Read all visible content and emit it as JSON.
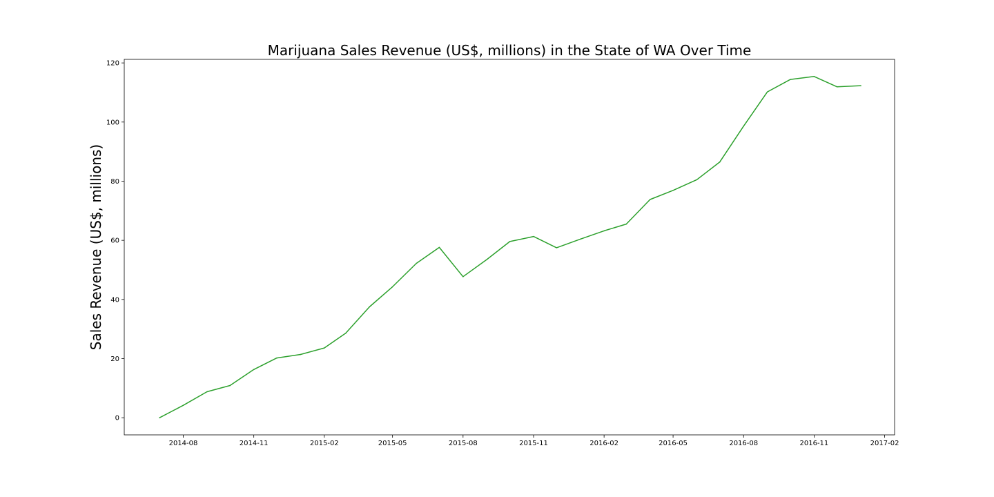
{
  "chart_data": {
    "type": "line",
    "title": "Marijuana Sales Revenue (US$, millions) in the State of WA Over Time",
    "xlabel": "",
    "ylabel": "Sales Revenue (US$, millions)",
    "x": [
      "2014-07",
      "2014-08",
      "2014-09",
      "2014-10",
      "2014-11",
      "2014-12",
      "2015-01",
      "2015-02",
      "2015-03",
      "2015-04",
      "2015-05",
      "2015-06",
      "2015-07",
      "2015-08",
      "2015-09",
      "2015-10",
      "2015-11",
      "2015-12",
      "2016-01",
      "2016-02",
      "2016-03",
      "2016-04",
      "2016-05",
      "2016-06",
      "2016-07",
      "2016-08",
      "2016-09",
      "2016-10",
      "2016-11",
      "2016-12",
      "2017-01"
    ],
    "series": [
      {
        "values": [
          0.0,
          4.2,
          8.8,
          10.9,
          16.3,
          20.2,
          21.4,
          23.6,
          28.6,
          37.5,
          44.3,
          52.2,
          57.6,
          47.7,
          53.5,
          59.6,
          61.3,
          57.5,
          60.4,
          63.2,
          65.5,
          73.8,
          76.9,
          80.5,
          86.5,
          98.6,
          110.2,
          114.4,
          115.4,
          111.9,
          112.3
        ],
        "color": "#2ca02c"
      }
    ],
    "x_ticks": [
      "2014-08",
      "2014-11",
      "2015-02",
      "2015-05",
      "2015-08",
      "2015-11",
      "2016-02",
      "2016-05",
      "2016-08",
      "2016-11",
      "2017-02"
    ],
    "y_ticks": [
      0,
      20,
      40,
      60,
      80,
      100,
      120
    ],
    "xlim": [
      "2014-05-16",
      "2017-02-14"
    ],
    "ylim": [
      -5.8,
      121.2
    ],
    "grid": false,
    "legend": "none"
  }
}
